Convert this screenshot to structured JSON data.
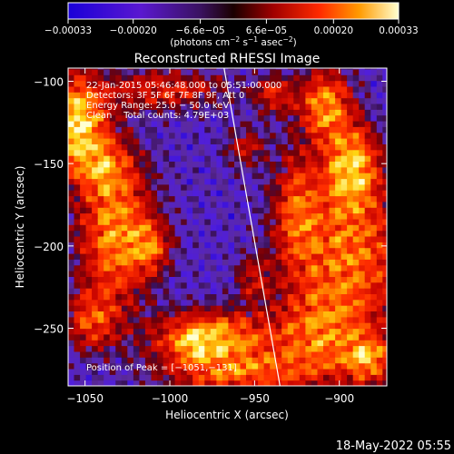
{
  "chart_data": {
    "type": "heatmap",
    "title": "Reconstructed RHESSI Image",
    "xlabel": "Heliocentric X (arcsec)",
    "ylabel": "Heliocentric Y (arcsec)",
    "xlim": [
      -1060,
      -872
    ],
    "ylim": [
      -285,
      -92
    ],
    "x_ticks": [
      -1050,
      -1000,
      -950,
      -900
    ],
    "x_tick_labels": [
      "−1050",
      "−1000",
      "−950",
      "−900"
    ],
    "y_ticks": [
      -100,
      -150,
      -200,
      -250
    ],
    "y_tick_labels": [
      "−100",
      "−150",
      "−200",
      "−250"
    ],
    "colorbar": {
      "range": [
        -0.00033,
        0.00033
      ],
      "tick_values": [
        -0.00033,
        -0.0002,
        -6.6e-05,
        6.6e-05,
        0.0002,
        0.00033
      ],
      "tick_labels": [
        "−0.00033",
        "−0.00020",
        "−6.6e−05",
        "6.6e−05",
        "0.00020",
        "0.00033"
      ],
      "unit_text": "(photons cm",
      "unit_exp1": "−2",
      "unit_mid": " s",
      "unit_exp2": "−1",
      "unit_end": " asec",
      "unit_exp3": "−2",
      "unit_close": ")"
    },
    "annotations": [
      "22-Jan-2015 05:46:48.000 to 05:51:00.000",
      "Detectors: 3F 5F 6F 7F 8F 9F, Att 0",
      "Energy Range: 25.0 − 50.0 keV",
      "Clean    Total counts: 4.79E+03"
    ],
    "peak_text": "Position of Peak = [−1051,−131]",
    "peak": [
      -1051,
      -131
    ],
    "limb_line": [
      [
        -968,
        -92
      ],
      [
        -935,
        -285
      ]
    ],
    "blobs": [
      {
        "x": -1056,
        "y": -126,
        "sx": 12,
        "sy": 18,
        "a": 1.25
      },
      {
        "x": -1040,
        "y": -152,
        "sx": 10,
        "sy": 10,
        "a": 0.55
      },
      {
        "x": -1032,
        "y": -190,
        "sx": 14,
        "sy": 30,
        "a": 0.85
      },
      {
        "x": -1012,
        "y": -200,
        "sx": 8,
        "sy": 10,
        "a": 0.6
      },
      {
        "x": -1046,
        "y": -245,
        "sx": 10,
        "sy": 12,
        "a": 0.55
      },
      {
        "x": -975,
        "y": -255,
        "sx": 22,
        "sy": 10,
        "a": 0.95
      },
      {
        "x": -985,
        "y": -260,
        "sx": 7,
        "sy": 6,
        "a": 0.5
      },
      {
        "x": -960,
        "y": -276,
        "sx": 28,
        "sy": 9,
        "a": 0.7
      },
      {
        "x": -908,
        "y": -115,
        "sx": 10,
        "sy": 14,
        "a": 0.85
      },
      {
        "x": -893,
        "y": -152,
        "sx": 10,
        "sy": 16,
        "a": 1.0
      },
      {
        "x": -895,
        "y": -205,
        "sx": 22,
        "sy": 32,
        "a": 0.75
      },
      {
        "x": -912,
        "y": -255,
        "sx": 18,
        "sy": 18,
        "a": 0.65
      },
      {
        "x": -883,
        "y": -268,
        "sx": 9,
        "sy": 9,
        "a": 0.85
      },
      {
        "x": -925,
        "y": -178,
        "sx": 9,
        "sy": 24,
        "a": 0.55
      },
      {
        "x": -955,
        "y": -140,
        "sx": 8,
        "sy": 8,
        "a": 0.35
      },
      {
        "x": -1003,
        "y": -105,
        "sx": 25,
        "sy": 8,
        "a": 0.45
      },
      {
        "x": -950,
        "y": -220,
        "sx": 7,
        "sy": 10,
        "a": 0.35
      },
      {
        "x": -938,
        "y": -108,
        "sx": 8,
        "sy": 8,
        "a": 0.45
      }
    ]
  },
  "footer": {
    "timestamp": "18-May-2022 05:55"
  }
}
